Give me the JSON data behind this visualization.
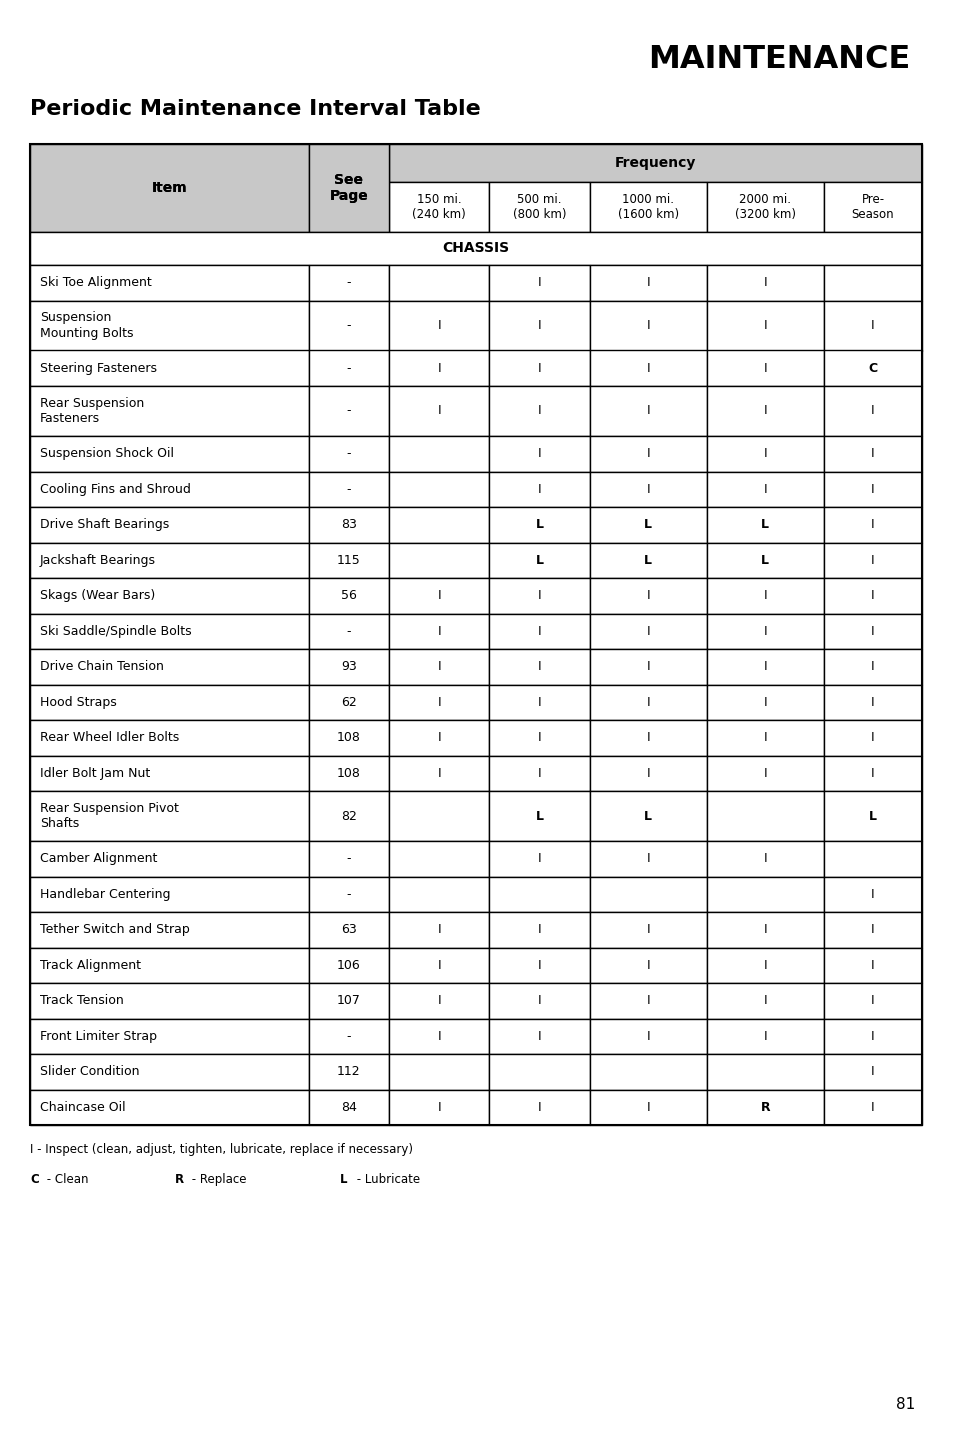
{
  "title": "MAINTENANCE",
  "subtitle": "Periodic Maintenance Interval Table",
  "page_number": "81",
  "header_bg": "#c8c8c8",
  "white_bg": "#ffffff",
  "frequency_label": "Frequency",
  "chassis_label": "CHASSIS",
  "rows": [
    {
      "item": "Ski Toe Alignment",
      "page": "-",
      "c1": "",
      "c2": "I",
      "c3": "I",
      "c4": "I",
      "c5": ""
    },
    {
      "item": "Suspension\nMounting Bolts",
      "page": "-",
      "c1": "I",
      "c2": "I",
      "c3": "I",
      "c4": "I",
      "c5": "I"
    },
    {
      "item": "Steering Fasteners",
      "page": "-",
      "c1": "I",
      "c2": "I",
      "c3": "I",
      "c4": "I",
      "c5": "C"
    },
    {
      "item": "Rear Suspension\nFasteners",
      "page": "-",
      "c1": "I",
      "c2": "I",
      "c3": "I",
      "c4": "I",
      "c5": "I"
    },
    {
      "item": "Suspension Shock Oil",
      "page": "-",
      "c1": "",
      "c2": "I",
      "c3": "I",
      "c4": "I",
      "c5": "I"
    },
    {
      "item": "Cooling Fins and Shroud",
      "page": "-",
      "c1": "",
      "c2": "I",
      "c3": "I",
      "c4": "I",
      "c5": "I"
    },
    {
      "item": "Drive Shaft Bearings",
      "page": "83",
      "c1": "",
      "c2": "L",
      "c3": "L",
      "c4": "L",
      "c5": "I"
    },
    {
      "item": "Jackshaft Bearings",
      "page": "115",
      "c1": "",
      "c2": "L",
      "c3": "L",
      "c4": "L",
      "c5": "I"
    },
    {
      "item": "Skags (Wear Bars)",
      "page": "56",
      "c1": "I",
      "c2": "I",
      "c3": "I",
      "c4": "I",
      "c5": "I"
    },
    {
      "item": "Ski Saddle/Spindle Bolts",
      "page": "-",
      "c1": "I",
      "c2": "I",
      "c3": "I",
      "c4": "I",
      "c5": "I"
    },
    {
      "item": "Drive Chain Tension",
      "page": "93",
      "c1": "I",
      "c2": "I",
      "c3": "I",
      "c4": "I",
      "c5": "I"
    },
    {
      "item": "Hood Straps",
      "page": "62",
      "c1": "I",
      "c2": "I",
      "c3": "I",
      "c4": "I",
      "c5": "I"
    },
    {
      "item": "Rear Wheel Idler Bolts",
      "page": "108",
      "c1": "I",
      "c2": "I",
      "c3": "I",
      "c4": "I",
      "c5": "I"
    },
    {
      "item": "Idler Bolt Jam Nut",
      "page": "108",
      "c1": "I",
      "c2": "I",
      "c3": "I",
      "c4": "I",
      "c5": "I"
    },
    {
      "item": "Rear Suspension Pivot\nShafts",
      "page": "82",
      "c1": "",
      "c2": "L",
      "c3": "L",
      "c4": "",
      "c5": "L"
    },
    {
      "item": "Camber Alignment",
      "page": "-",
      "c1": "",
      "c2": "I",
      "c3": "I",
      "c4": "I",
      "c5": ""
    },
    {
      "item": "Handlebar Centering",
      "page": "-",
      "c1": "",
      "c2": "",
      "c3": "",
      "c4": "",
      "c5": "I"
    },
    {
      "item": "Tether Switch and Strap",
      "page": "63",
      "c1": "I",
      "c2": "I",
      "c3": "I",
      "c4": "I",
      "c5": "I"
    },
    {
      "item": "Track Alignment",
      "page": "106",
      "c1": "I",
      "c2": "I",
      "c3": "I",
      "c4": "I",
      "c5": "I"
    },
    {
      "item": "Track Tension",
      "page": "107",
      "c1": "I",
      "c2": "I",
      "c3": "I",
      "c4": "I",
      "c5": "I"
    },
    {
      "item": "Front Limiter Strap",
      "page": "-",
      "c1": "I",
      "c2": "I",
      "c3": "I",
      "c4": "I",
      "c5": "I"
    },
    {
      "item": "Slider Condition",
      "page": "112",
      "c1": "",
      "c2": "",
      "c3": "",
      "c4": "",
      "c5": "I"
    },
    {
      "item": "Chaincase Oil",
      "page": "84",
      "c1": "I",
      "c2": "I",
      "c3": "I",
      "c4": "R",
      "c5": "I"
    }
  ],
  "col_header_texts": [
    "150 mi.\n(240 km)",
    "500 mi.\n(800 km)",
    "1000 mi.\n(1600 km)",
    "2000 mi.\n(3200 km)",
    "Pre-\nSeason"
  ],
  "two_line_rows": [
    1,
    3,
    14
  ],
  "footnote_line1": "I - Inspect (clean, adjust, tighten, lubricate, replace if necessary)",
  "footnote_c_bold": "C",
  "footnote_c": " - Clean",
  "footnote_r_bold": "R",
  "footnote_r": " - Replace",
  "footnote_l_bold": "L",
  "footnote_l": " - Lubricate"
}
